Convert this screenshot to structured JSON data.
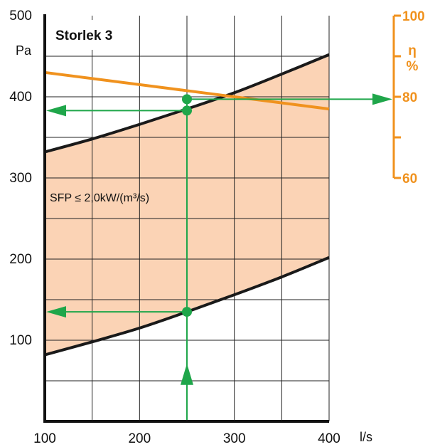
{
  "chart_data": {
    "type": "line",
    "title": "Storlek 3",
    "xlabel": "l/s",
    "ylabel": "Pa",
    "xlim": [
      100,
      400
    ],
    "ylim": [
      0,
      500
    ],
    "x_ticks": [
      100,
      200,
      300,
      400
    ],
    "y_ticks": [
      100,
      200,
      300,
      400,
      500
    ],
    "grid": true,
    "y2_label": "η",
    "y2_unit": "%",
    "y2_lim": [
      60,
      100
    ],
    "y2_ticks": [
      60,
      80,
      100
    ],
    "annotation": "SFP ≤ 2,0kW/(m³/s)",
    "series": [
      {
        "role": "upper-boundary",
        "color": "#1a1a1a",
        "x": [
          100,
          150,
          200,
          250,
          300,
          350,
          400
        ],
        "y": [
          332,
          348,
          366,
          385,
          405,
          428,
          452
        ]
      },
      {
        "role": "lower-boundary",
        "color": "#1a1a1a",
        "x": [
          100,
          150,
          200,
          250,
          300,
          350,
          400
        ],
        "y": [
          82,
          98,
          115,
          135,
          156,
          178,
          202
        ]
      },
      {
        "role": "efficiency",
        "axis": "y2",
        "color": "#f0921e",
        "x": [
          100,
          400
        ],
        "y": [
          86,
          77
        ]
      }
    ],
    "example": {
      "color": "#1fa64a",
      "airflow": 250,
      "pressures": [
        135,
        383
      ],
      "efficiency_point_pa": 397,
      "efficiency": 80
    },
    "colors": {
      "fill": "#fbd3b5",
      "axis": "#111111",
      "grid": "#222222"
    }
  }
}
